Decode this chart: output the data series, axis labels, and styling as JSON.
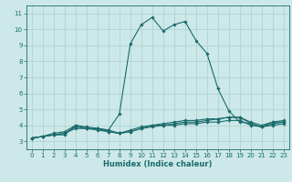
{
  "title": "",
  "xlabel": "Humidex (Indice chaleur)",
  "ylabel": "",
  "xlim": [
    -0.5,
    23.5
  ],
  "ylim": [
    2.5,
    11.5
  ],
  "yticks": [
    3,
    4,
    5,
    6,
    7,
    8,
    9,
    10,
    11
  ],
  "xticks": [
    0,
    1,
    2,
    3,
    4,
    5,
    6,
    7,
    8,
    9,
    10,
    11,
    12,
    13,
    14,
    15,
    16,
    17,
    18,
    19,
    20,
    21,
    22,
    23
  ],
  "bg_color": "#cce8e8",
  "grid_color": "#aacfcf",
  "line_color": "#1a6b6b",
  "lines": [
    {
      "x": [
        0,
        1,
        2,
        3,
        4,
        5,
        6,
        7,
        8,
        9,
        10,
        11,
        12,
        13,
        14,
        15,
        16,
        17,
        18,
        19,
        20,
        21,
        22,
        23
      ],
      "y": [
        3.2,
        3.3,
        3.4,
        3.4,
        4.0,
        3.8,
        3.8,
        3.7,
        4.7,
        9.1,
        10.3,
        10.75,
        9.9,
        10.3,
        10.5,
        9.3,
        8.5,
        6.3,
        4.9,
        4.2,
        4.1,
        3.9,
        4.2,
        4.2
      ]
    },
    {
      "x": [
        0,
        1,
        2,
        3,
        4,
        5,
        6,
        7,
        8,
        9,
        10,
        11,
        12,
        13,
        14,
        15,
        16,
        17,
        18,
        19,
        20,
        21,
        22,
        23
      ],
      "y": [
        3.2,
        3.3,
        3.4,
        3.5,
        3.8,
        3.8,
        3.8,
        3.6,
        3.5,
        3.7,
        3.9,
        4.0,
        4.0,
        4.1,
        4.2,
        4.2,
        4.3,
        4.4,
        4.5,
        4.5,
        4.1,
        3.9,
        4.1,
        4.2
      ]
    },
    {
      "x": [
        0,
        1,
        2,
        3,
        4,
        5,
        6,
        7,
        8,
        9,
        10,
        11,
        12,
        13,
        14,
        15,
        16,
        17,
        18,
        19,
        20,
        21,
        22,
        23
      ],
      "y": [
        3.2,
        3.3,
        3.4,
        3.5,
        3.9,
        3.8,
        3.7,
        3.6,
        3.5,
        3.6,
        3.8,
        3.9,
        4.0,
        4.0,
        4.1,
        4.1,
        4.2,
        4.2,
        4.3,
        4.3,
        4.0,
        3.9,
        4.0,
        4.1
      ]
    },
    {
      "x": [
        0,
        1,
        2,
        3,
        4,
        5,
        6,
        7,
        8,
        9,
        10,
        11,
        12,
        13,
        14,
        15,
        16,
        17,
        18,
        19,
        20,
        21,
        22,
        23
      ],
      "y": [
        3.2,
        3.3,
        3.5,
        3.6,
        4.0,
        3.9,
        3.8,
        3.7,
        3.5,
        3.6,
        3.8,
        4.0,
        4.1,
        4.2,
        4.3,
        4.3,
        4.4,
        4.4,
        4.5,
        4.5,
        4.2,
        4.0,
        4.2,
        4.3
      ]
    }
  ],
  "marker": "D",
  "markersize": 1.8,
  "linewidth": 0.8,
  "tick_fontsize": 5.0,
  "xlabel_fontsize": 6.0
}
